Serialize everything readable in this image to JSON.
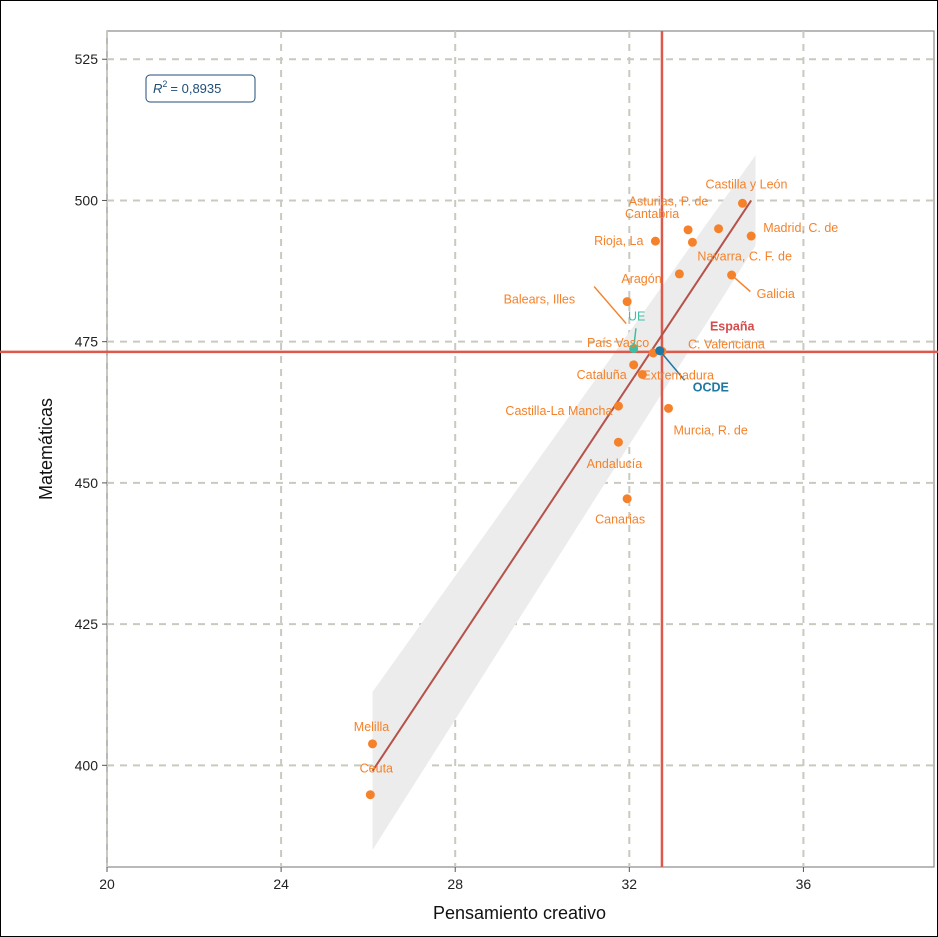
{
  "chart_data": {
    "type": "scatter",
    "xlabel": "Pensamiento creativo",
    "ylabel": "Matemáticas",
    "xlim": [
      20,
      39
    ],
    "ylim": [
      382,
      530
    ],
    "xticks": [
      20,
      24,
      28,
      32,
      36
    ],
    "yticks": [
      400,
      425,
      450,
      475,
      500,
      525
    ],
    "grid": true,
    "annotation": {
      "r2_label": "R",
      "r2_exp": "2",
      "r2_value": "= 0,8935"
    },
    "reference_lines": {
      "x": 32.75,
      "y": 473.2
    },
    "regression": {
      "x": [
        26.1,
        34.8
      ],
      "y": [
        399,
        500
      ]
    },
    "colors": {
      "region": "#f5822a",
      "espana": "#d64b4b",
      "ue": "#3bbfa5",
      "ocde": "#1f77a3",
      "ref": "#dc5a4c",
      "fit": "#b5524a",
      "band": "#ececec"
    },
    "points": [
      {
        "name": "Castilla y León",
        "x": 34.6,
        "y": 499.5,
        "group": "region"
      },
      {
        "name": "Asturias, P. de",
        "x": 34.05,
        "y": 495,
        "group": "region"
      },
      {
        "name": "Madrid, C. de",
        "x": 34.8,
        "y": 493.7,
        "group": "region"
      },
      {
        "name": "Cantabria",
        "x": 33.35,
        "y": 494.8,
        "group": "region"
      },
      {
        "name": "Navarra, C. F. de",
        "x": 33.45,
        "y": 492.6,
        "group": "region"
      },
      {
        "name": "Rioja, La",
        "x": 32.6,
        "y": 492.8,
        "group": "region"
      },
      {
        "name": "Aragón",
        "x": 33.15,
        "y": 487,
        "group": "region"
      },
      {
        "name": "Galicia",
        "x": 34.35,
        "y": 486.8,
        "group": "region"
      },
      {
        "name": "Balears, Illes",
        "x": 31.95,
        "y": 482.1,
        "group": "region"
      },
      {
        "name": "UE",
        "x": 32.1,
        "y": 473.8,
        "group": "ue"
      },
      {
        "name": "País Vasco",
        "x": 32.55,
        "y": 473,
        "group": "region"
      },
      {
        "name": "C. Valenciana",
        "x": 32.75,
        "y": 473.3,
        "group": "region"
      },
      {
        "name": "España",
        "x": 32.75,
        "y": 473.3,
        "group": "espana"
      },
      {
        "name": "OCDE",
        "x": 32.7,
        "y": 473.4,
        "group": "ocde"
      },
      {
        "name": "Cataluña",
        "x": 32.1,
        "y": 470.9,
        "group": "region"
      },
      {
        "name": "Extremadura",
        "x": 32.3,
        "y": 469.2,
        "group": "region"
      },
      {
        "name": "Castilla-La Mancha",
        "x": 31.75,
        "y": 463.6,
        "group": "region"
      },
      {
        "name": "Murcia, R. de",
        "x": 32.9,
        "y": 463.2,
        "group": "region"
      },
      {
        "name": "Andalucía",
        "x": 31.75,
        "y": 457.2,
        "group": "region"
      },
      {
        "name": "Canarias",
        "x": 31.95,
        "y": 447.2,
        "group": "region"
      },
      {
        "name": "Melilla",
        "x": 26.1,
        "y": 403.8,
        "group": "region"
      },
      {
        "name": "Ceuta",
        "x": 26.05,
        "y": 394.8,
        "group": "region"
      }
    ]
  }
}
